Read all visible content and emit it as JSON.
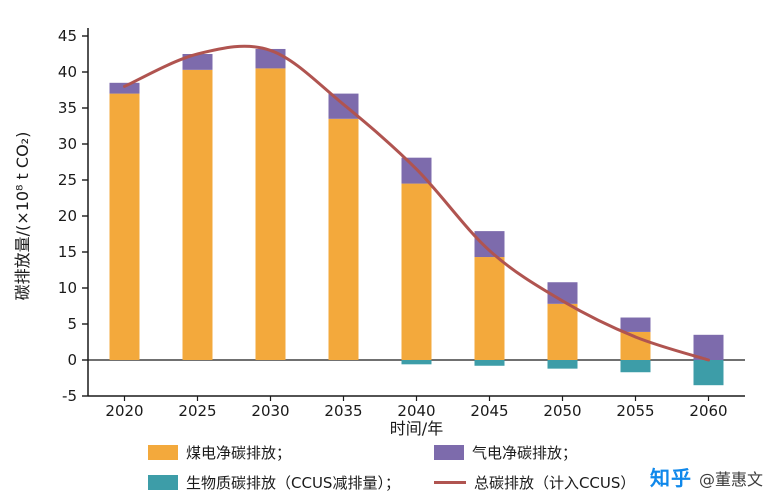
{
  "chart_data": {
    "type": "bar",
    "stacked": true,
    "categories": [
      "2020",
      "2025",
      "2030",
      "2035",
      "2040",
      "2045",
      "2050",
      "2055",
      "2060"
    ],
    "series": [
      {
        "name": "煤电净碳排放",
        "color": "#F3A93C",
        "values": [
          37.0,
          40.3,
          40.5,
          33.5,
          24.5,
          14.3,
          7.8,
          3.9,
          0
        ]
      },
      {
        "name": "气电净碳排放",
        "color": "#7D6BAC",
        "values": [
          1.5,
          2.2,
          2.7,
          3.5,
          3.6,
          3.6,
          3.0,
          2.0,
          3.5
        ]
      },
      {
        "name": "生物质碳排放（CCUS减排量）",
        "color": "#3D9DA8",
        "values": [
          0,
          0,
          0,
          0,
          -0.6,
          -0.8,
          -1.2,
          -1.7,
          -3.5
        ]
      }
    ],
    "line_series": {
      "name": "总碳排放（计入CCUS）",
      "color": "#B05450",
      "values": [
        38.0,
        42.5,
        43.0,
        35.5,
        26.5,
        15.2,
        8.2,
        3.2,
        0
      ]
    },
    "title": "",
    "xlabel": "时间/年",
    "ylabel": "碳排放量/(×10⁸ t CO₂)",
    "ylim": [
      -5,
      45
    ],
    "ytick_step": 5,
    "grid": false,
    "legend_position": "bottom"
  },
  "legend": {
    "items": [
      {
        "label": "煤电净碳排放；",
        "type": "rect",
        "color": "#F3A93C"
      },
      {
        "label": "气电净碳排放；",
        "type": "rect",
        "color": "#7D6BAC"
      },
      {
        "label": "生物质碳排放（CCUS减排量）；",
        "type": "rect",
        "color": "#3D9DA8"
      },
      {
        "label": "总碳排放（计入CCUS）",
        "type": "line",
        "color": "#B05450"
      }
    ]
  },
  "watermark": {
    "brand": "知乎",
    "user": "@董惠文",
    "brand_color": "#0f88eb"
  },
  "axis_color": "#1a1a1a"
}
